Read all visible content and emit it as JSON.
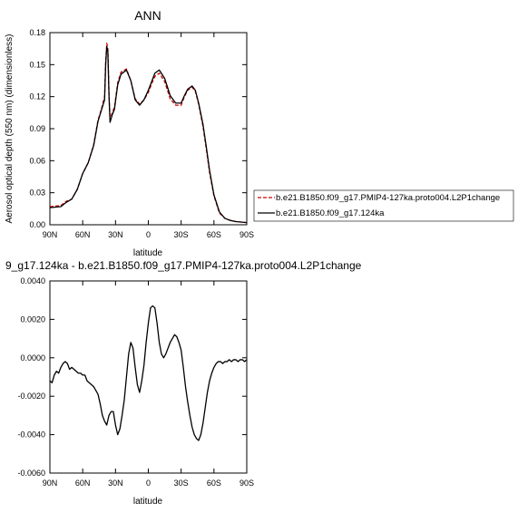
{
  "chart_data": [
    {
      "type": "line",
      "title": "ANN",
      "xlabel": "latitude",
      "ylabel": "Aerosol optical depth (550 nm) (dimensionless)",
      "x_ticks": [
        "90N",
        "60N",
        "30N",
        "0",
        "30S",
        "60S",
        "90S"
      ],
      "x_tick_values": [
        90,
        60,
        30,
        0,
        -30,
        -60,
        -90
      ],
      "xlim": [
        90,
        -90
      ],
      "y_ticks": [
        "0.00",
        "0.03",
        "0.06",
        "0.09",
        "0.12",
        "0.15",
        "0.18"
      ],
      "ylim": [
        0,
        0.18
      ],
      "grid": false,
      "legend_position": "right",
      "x": [
        90,
        80,
        75,
        70,
        65,
        60,
        55,
        50,
        46,
        43,
        40,
        39,
        38,
        37,
        36,
        35,
        33,
        31,
        28,
        25,
        20,
        16,
        12,
        8,
        4,
        0,
        -3,
        -6,
        -10,
        -15,
        -20,
        -25,
        -30,
        -33,
        -36,
        -40,
        -43,
        -46,
        -50,
        -53,
        -56,
        -60,
        -65,
        -70,
        -75,
        -80,
        -90
      ],
      "series": [
        {
          "name": "b.e21.B1850.f09_g17.PMIP4-127ka.proto004.L2P1change",
          "color": "#cc0000",
          "dash": "dashed",
          "values": [
            0.017,
            0.018,
            0.022,
            0.024,
            0.033,
            0.048,
            0.058,
            0.075,
            0.098,
            0.108,
            0.12,
            0.153,
            0.17,
            0.165,
            0.125,
            0.098,
            0.105,
            0.11,
            0.133,
            0.143,
            0.146,
            0.135,
            0.118,
            0.113,
            0.117,
            0.124,
            0.132,
            0.139,
            0.142,
            0.134,
            0.118,
            0.112,
            0.112,
            0.12,
            0.126,
            0.129,
            0.125,
            0.113,
            0.092,
            0.071,
            0.049,
            0.027,
            0.011,
            0.006,
            0.004,
            0.003,
            0.002
          ]
        },
        {
          "name": "b.e21.B1850.f09_g17.124ka",
          "color": "#000000",
          "dash": "solid",
          "values": [
            0.016,
            0.017,
            0.021,
            0.024,
            0.033,
            0.048,
            0.058,
            0.074,
            0.097,
            0.107,
            0.117,
            0.15,
            0.167,
            0.162,
            0.122,
            0.096,
            0.103,
            0.108,
            0.131,
            0.141,
            0.145,
            0.135,
            0.117,
            0.112,
            0.117,
            0.126,
            0.134,
            0.142,
            0.145,
            0.137,
            0.121,
            0.114,
            0.114,
            0.121,
            0.127,
            0.13,
            0.126,
            0.114,
            0.094,
            0.073,
            0.051,
            0.028,
            0.012,
            0.006,
            0.004,
            0.003,
            0.002
          ]
        }
      ]
    },
    {
      "type": "line",
      "title": "9_g17.124ka - b.e21.B1850.f09_g17.PMIP4-127ka.proto004.L2P1change",
      "xlabel": "latitude",
      "ylabel": "",
      "x_ticks": [
        "90N",
        "60N",
        "30N",
        "0",
        "30S",
        "60S",
        "90S"
      ],
      "x_tick_values": [
        90,
        60,
        30,
        0,
        -30,
        -60,
        -90
      ],
      "xlim": [
        90,
        -90
      ],
      "y_ticks": [
        "-0.0060",
        "-0.0040",
        "-0.0020",
        "0.0000",
        "0.0020",
        "0.0040"
      ],
      "ylim": [
        -0.006,
        0.004
      ],
      "grid": false,
      "series": [
        {
          "color": "#000000",
          "dash": "solid",
          "x": [
            90,
            88,
            86,
            84,
            82,
            80,
            78,
            76,
            74,
            72,
            70,
            68,
            66,
            64,
            62,
            60,
            58,
            56,
            54,
            52,
            50,
            48,
            46,
            44,
            42,
            40,
            38,
            36,
            34,
            32,
            30,
            28,
            26,
            24,
            22,
            20,
            18,
            16,
            14,
            12,
            10,
            8,
            6,
            4,
            2,
            0,
            -2,
            -4,
            -6,
            -8,
            -10,
            -12,
            -14,
            -16,
            -18,
            -20,
            -22,
            -24,
            -26,
            -28,
            -30,
            -32,
            -34,
            -36,
            -38,
            -40,
            -42,
            -44,
            -46,
            -48,
            -50,
            -52,
            -54,
            -56,
            -58,
            -60,
            -62,
            -64,
            -66,
            -68,
            -70,
            -72,
            -74,
            -76,
            -78,
            -80,
            -82,
            -84,
            -86,
            -88,
            -90
          ],
          "values": [
            -0.0012,
            -0.0013,
            -0.0009,
            -0.0007,
            -0.0008,
            -0.0005,
            -0.0003,
            -0.0002,
            -0.0003,
            -0.0006,
            -0.0005,
            -0.0006,
            -0.0007,
            -0.0008,
            -0.0008,
            -0.0009,
            -0.0009,
            -0.0012,
            -0.0013,
            -0.0014,
            -0.0015,
            -0.0017,
            -0.0019,
            -0.0024,
            -0.003,
            -0.0033,
            -0.0035,
            -0.003,
            -0.0028,
            -0.0028,
            -0.0035,
            -0.004,
            -0.0037,
            -0.003,
            -0.0022,
            -0.001,
            0.0002,
            0.0008,
            0.0005,
            -0.0005,
            -0.0014,
            -0.0018,
            -0.0012,
            -0.0004,
            0.0008,
            0.0018,
            0.0026,
            0.0027,
            0.0026,
            0.0018,
            0.0008,
            0.0002,
            0.0,
            0.0002,
            0.0005,
            0.0008,
            0.001,
            0.0012,
            0.0011,
            0.0008,
            0.0004,
            -0.0005,
            -0.0015,
            -0.0023,
            -0.003,
            -0.0036,
            -0.004,
            -0.0042,
            -0.0043,
            -0.004,
            -0.0034,
            -0.0026,
            -0.0018,
            -0.0012,
            -0.0008,
            -0.0005,
            -0.0003,
            -0.0002,
            -0.0002,
            -0.0003,
            -0.0002,
            -0.0002,
            -0.0001,
            -0.0002,
            -0.0001,
            -0.0001,
            -0.0002,
            -0.0001,
            -0.0001,
            -0.0002,
            -0.0001
          ]
        }
      ]
    }
  ]
}
